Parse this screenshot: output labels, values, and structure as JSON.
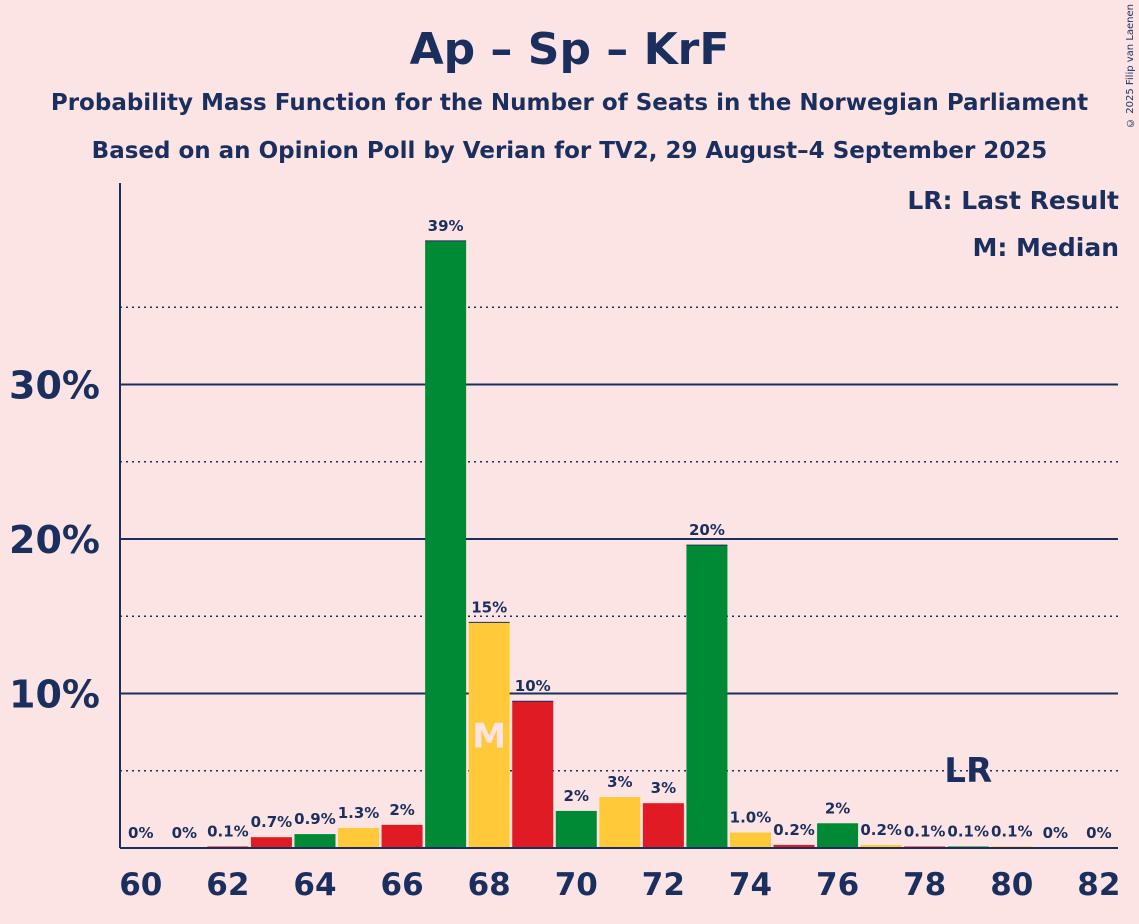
{
  "title": "Ap – Sp – KrF",
  "subtitle1": "Probability Mass Function for the Number of Seats in the Norwegian Parliament",
  "subtitle2": "Based on an Opinion Poll by Verian for TV2, 29 August–4 September 2025",
  "credit": "© 2025 Filip van Laenen",
  "legend": {
    "lr": "LR: Last Result",
    "m": "M: Median"
  },
  "colors": {
    "green": "#008a35",
    "yellow": "#ffc939",
    "red": "#e01b23",
    "navy": "#1a2f5e",
    "background": "#fde4e4"
  },
  "chart_data": {
    "type": "bar",
    "title": "Ap – Sp – KrF",
    "x": [
      60,
      61,
      62,
      63,
      64,
      65,
      66,
      67,
      68,
      69,
      70,
      71,
      72,
      73,
      74,
      75,
      76,
      77,
      78,
      79,
      80,
      81,
      82
    ],
    "values": [
      0,
      0,
      0.1,
      0.7,
      0.9,
      1.3,
      1.5,
      39.3,
      14.6,
      9.5,
      2.4,
      3.3,
      2.9,
      19.6,
      1.0,
      0.2,
      1.6,
      0.2,
      0.1,
      0.1,
      0.1,
      0,
      0
    ],
    "data_labels": [
      "0%",
      "0%",
      "0.1%",
      "0.7%",
      "0.9%",
      "1.3%",
      "2%",
      "39%",
      "15%",
      "10%",
      "2%",
      "3%",
      "3%",
      "20%",
      "1.0%",
      "0.2%",
      "2%",
      "0.2%",
      "0.1%",
      "0.1%",
      "0.1%",
      "0%",
      "0%"
    ],
    "bar_colors": [
      "green",
      "yellow",
      "red",
      "red",
      "green",
      "yellow",
      "red",
      "green",
      "yellow",
      "red",
      "green",
      "yellow",
      "red",
      "green",
      "yellow",
      "red",
      "green",
      "yellow",
      "red",
      "green",
      "yellow",
      "red",
      "green"
    ],
    "x_ticks": [
      60,
      62,
      64,
      66,
      68,
      70,
      72,
      74,
      76,
      78,
      80,
      82
    ],
    "y_ticks": [
      10,
      20,
      30
    ],
    "y_tick_labels": [
      "10%",
      "20%",
      "30%"
    ],
    "minor_gridlines": [
      5,
      15,
      25,
      35
    ],
    "ylim": [
      0,
      43
    ],
    "median": 68,
    "median_label": "M",
    "last_result": 79,
    "last_result_label": "LR"
  }
}
